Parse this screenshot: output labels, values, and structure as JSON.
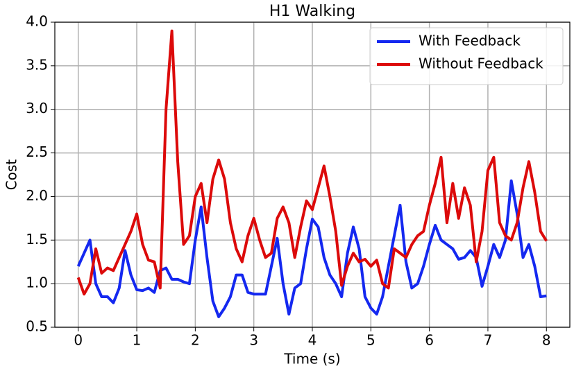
{
  "chart_data": {
    "type": "line",
    "title": "H1 Walking",
    "x_label": "Time (s)",
    "y_label": "Cost",
    "x": [
      0,
      0.1,
      0.2,
      0.3,
      0.4,
      0.5,
      0.6,
      0.7,
      0.8,
      0.9,
      1,
      1.1,
      1.2,
      1.3,
      1.4,
      1.5,
      1.6,
      1.7,
      1.8,
      1.9,
      2,
      2.1,
      2.2,
      2.3,
      2.4,
      2.5,
      2.6,
      2.7,
      2.8,
      2.9,
      3,
      3.1,
      3.2,
      3.3,
      3.4,
      3.5,
      3.6,
      3.7,
      3.8,
      3.9,
      4,
      4.1,
      4.2,
      4.3,
      4.4,
      4.5,
      4.6,
      4.7,
      4.8,
      4.9,
      5,
      5.1,
      5.2,
      5.3,
      5.4,
      5.5,
      5.6,
      5.7,
      5.8,
      5.9,
      6,
      6.1,
      6.2,
      6.3,
      6.4,
      6.5,
      6.6,
      6.7,
      6.8,
      6.9,
      7,
      7.1,
      7.2,
      7.3,
      7.4,
      7.5,
      7.6,
      7.7,
      7.8,
      7.9,
      8
    ],
    "series": [
      {
        "name": "With Feedback",
        "color": "#1428f0",
        "values": [
          1.2,
          1.35,
          1.5,
          1.0,
          0.85,
          0.85,
          0.78,
          0.95,
          1.38,
          1.1,
          0.93,
          0.92,
          0.95,
          0.9,
          1.15,
          1.18,
          1.05,
          1.05,
          1.02,
          1.0,
          1.5,
          1.88,
          1.3,
          0.8,
          0.62,
          0.72,
          0.85,
          1.1,
          1.1,
          0.9,
          0.88,
          0.88,
          0.88,
          1.2,
          1.52,
          1.0,
          0.65,
          0.95,
          1.0,
          1.4,
          1.74,
          1.65,
          1.3,
          1.1,
          1.0,
          0.85,
          1.35,
          1.65,
          1.4,
          0.85,
          0.72,
          0.65,
          0.85,
          1.2,
          1.55,
          1.9,
          1.25,
          0.95,
          1.0,
          1.2,
          1.45,
          1.67,
          1.5,
          1.45,
          1.4,
          1.28,
          1.3,
          1.38,
          1.3,
          0.97,
          1.2,
          1.45,
          1.3,
          1.5,
          2.18,
          1.8,
          1.3,
          1.45,
          1.2,
          0.85,
          0.86
        ]
      },
      {
        "name": "Without Feedback",
        "color": "#dc0a0a",
        "values": [
          1.07,
          0.88,
          1.0,
          1.4,
          1.12,
          1.18,
          1.15,
          1.3,
          1.45,
          1.6,
          1.8,
          1.45,
          1.27,
          1.25,
          0.95,
          3.0,
          3.9,
          2.4,
          1.45,
          1.55,
          2.0,
          2.15,
          1.7,
          2.2,
          2.42,
          2.2,
          1.7,
          1.4,
          1.25,
          1.55,
          1.75,
          1.5,
          1.3,
          1.35,
          1.75,
          1.88,
          1.7,
          1.3,
          1.65,
          1.95,
          1.85,
          2.1,
          2.35,
          2.0,
          1.6,
          0.98,
          1.2,
          1.35,
          1.25,
          1.28,
          1.2,
          1.27,
          1.0,
          0.95,
          1.4,
          1.35,
          1.3,
          1.45,
          1.55,
          1.6,
          1.9,
          2.15,
          2.45,
          1.7,
          2.15,
          1.75,
          2.1,
          1.9,
          1.25,
          1.6,
          2.3,
          2.45,
          1.7,
          1.55,
          1.5,
          1.7,
          2.1,
          2.4,
          2.05,
          1.6,
          1.49
        ]
      }
    ],
    "xlim": [
      -0.4,
      8.4
    ],
    "ylim": [
      0.5,
      4
    ],
    "xticks": [
      0,
      1,
      2,
      3,
      4,
      5,
      6,
      7,
      8
    ],
    "yticks": [
      0.5,
      {
        "value": 1,
        "label": "1.0"
      },
      1.5,
      {
        "value": 2,
        "label": "2.0"
      },
      2.5,
      {
        "value": 3,
        "label": "3.0"
      },
      3.5,
      {
        "value": 4,
        "label": "4.0"
      }
    ],
    "grid": true,
    "legend": "upper-right"
  }
}
